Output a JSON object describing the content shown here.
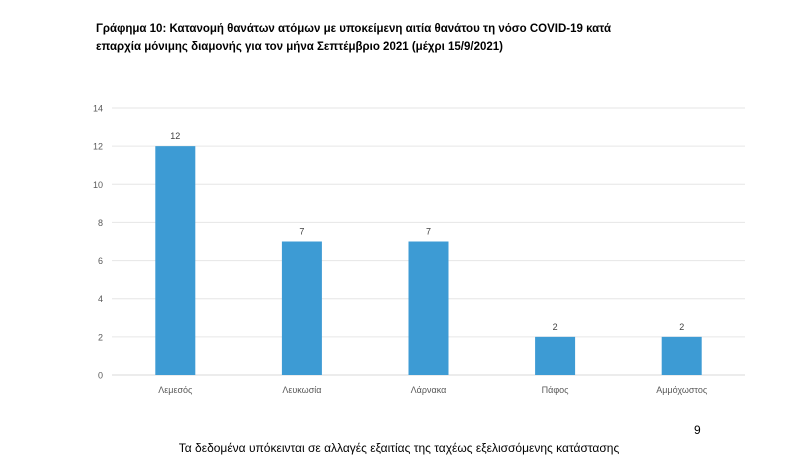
{
  "title_lines": [
    "Γράφημα 10: Κατανομή θανάτων ατόμων με υποκείμενη αιτία θανάτου τη νόσο COVID-19 κατά",
    "επαρχία μόνιμης διαμονής για τον μήνα Σεπτέμβριο 2021 (μέχρι 15/9/2021)"
  ],
  "page_number": "9",
  "footnote": "Τα δεδομένα υπόκεινται σε αλλαγές εξαιτίας της ταχέως εξελισσόμενης κατάστασης",
  "colors": {
    "bar": "#3d9bd4",
    "grid": "#e6e6e6",
    "axis_text": "#595959",
    "label_text": "#404040"
  },
  "chart_data": {
    "type": "bar",
    "title": "Γράφημα 10: Κατανομή θανάτων ατόμων με υποκείμενη αιτία θανάτου τη νόσο COVID-19 κατά επαρχία μόνιμης διαμονής για τον μήνα Σεπτέμβριο 2021 (μέχρι 15/9/2021)",
    "categories": [
      "Λεμεσός",
      "Λευκωσία",
      "Λάρνακα",
      "Πάφος",
      "Αμμόχωστος"
    ],
    "values": [
      12,
      7,
      7,
      2,
      2
    ],
    "ylim": [
      0,
      14
    ],
    "yticks": [
      0,
      2,
      4,
      6,
      8,
      10,
      12,
      14
    ],
    "xlabel": "",
    "ylabel": "",
    "grid": true,
    "data_labels": true,
    "legend": "none"
  }
}
